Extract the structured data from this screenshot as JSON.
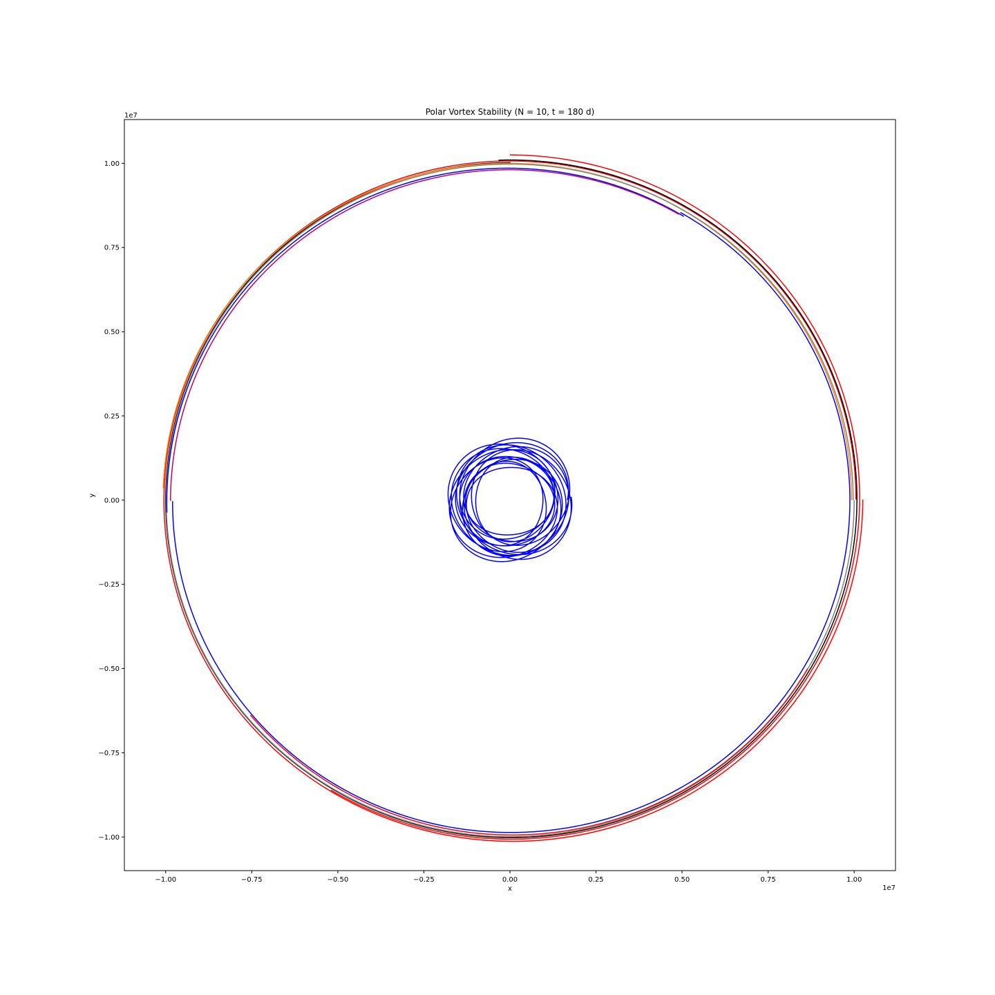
{
  "chart_data": {
    "type": "line",
    "title": "Polar Vortex Stability (N = 10, t = 180 d)",
    "xlabel": "x",
    "ylabel": "y",
    "xlim": [
      -11200000,
      11200000
    ],
    "ylim": [
      -11000000,
      11300000
    ],
    "x_offset_label": "1e7",
    "y_offset_label": "1e7",
    "xticks": [
      -10000000,
      -7500000,
      -5000000,
      -2500000,
      0,
      2500000,
      5000000,
      7500000,
      10000000
    ],
    "xtick_labels": [
      "−1.00",
      "−0.75",
      "−0.50",
      "−0.25",
      "0.00",
      "0.25",
      "0.50",
      "0.75",
      "1.00"
    ],
    "yticks": [
      -10000000,
      -7500000,
      -5000000,
      -2500000,
      0,
      2500000,
      5000000,
      7500000,
      10000000
    ],
    "ytick_labels": [
      "−1.00",
      "−0.75",
      "−0.50",
      "−0.25",
      "0.00",
      "0.25",
      "0.50",
      "0.75",
      "1.00"
    ],
    "grid": false,
    "legend": "none",
    "series": [
      {
        "color": "#ff0000",
        "cx": 0,
        "cy": 50000,
        "r_start": 10100000,
        "r_end": 10200000,
        "start_deg": 239,
        "end_deg": 450
      },
      {
        "color": "#ff0000",
        "cx": 50000,
        "cy": 20000,
        "r_start": 10000000,
        "r_end": 10200000,
        "start_deg": 0,
        "end_deg": 360
      },
      {
        "color": "#000000",
        "cx": 20000,
        "cy": 20000,
        "r_start": 10000000,
        "r_end": 10080000,
        "start_deg": 90,
        "end_deg": 452
      },
      {
        "color": "#ff8c00",
        "cx": -30000,
        "cy": 0,
        "r_start": 9950000,
        "r_end": 10050000,
        "start_deg": 0,
        "end_deg": 178
      },
      {
        "color": "#808080",
        "cx": 0,
        "cy": 0,
        "r_start": 9970000,
        "r_end": 10000000,
        "start_deg": 0,
        "end_deg": 360
      },
      {
        "color": "#0000ff",
        "cx": -20000,
        "cy": -20000,
        "r_start": 9850000,
        "r_end": 9950000,
        "start_deg": 59,
        "end_deg": 182
      },
      {
        "color": "#0000ff",
        "cx": 0,
        "cy": -30000,
        "r_start": 9800000,
        "r_end": 9900000,
        "start_deg": 180,
        "end_deg": 420
      },
      {
        "color": "#c00060",
        "cx": 0,
        "cy": -20000,
        "r_start": 9820000,
        "r_end": 9860000,
        "start_deg": 60,
        "end_deg": 180
      },
      {
        "color": "#ff0000",
        "cx": 30000,
        "cy": -30000,
        "r_start": 9880000,
        "r_end": 9950000,
        "start_deg": 220,
        "end_deg": 330
      },
      {
        "color": "#0000ff",
        "cx": 0,
        "cy": 0,
        "r_start": 1050000,
        "r_end": 1800000,
        "start_deg": 0,
        "end_deg": 5400,
        "wobble": true
      }
    ]
  }
}
